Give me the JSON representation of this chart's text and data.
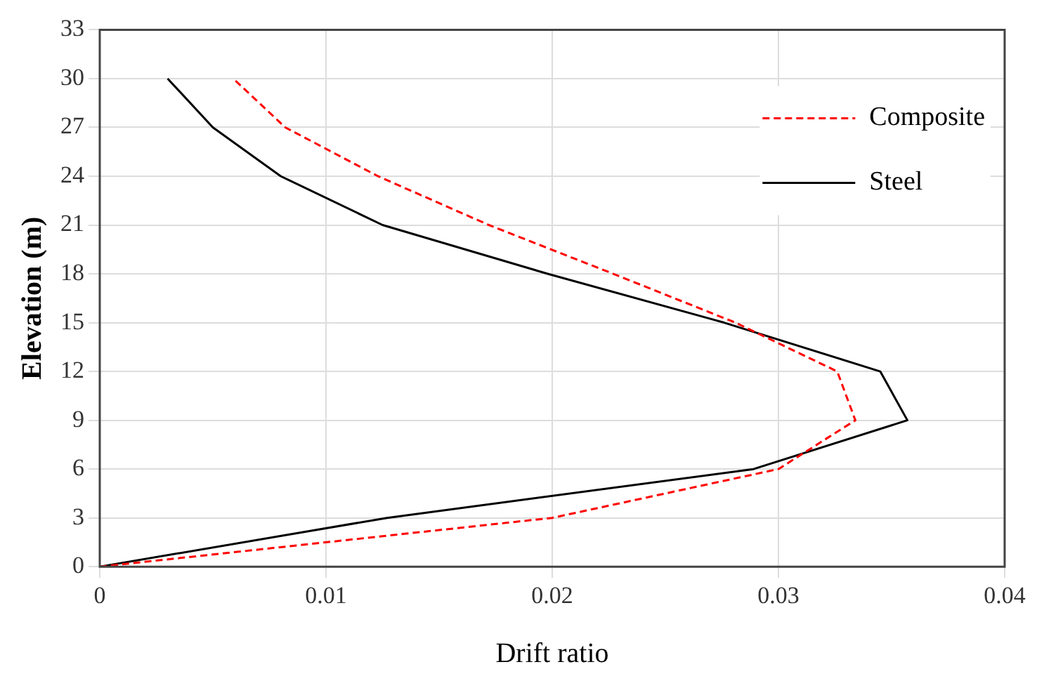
{
  "chart_data": {
    "type": "line",
    "xlabel": "Drift ratio",
    "ylabel": "Elevation (m)",
    "xlim": [
      0,
      0.04
    ],
    "xticks": [
      0,
      0.01,
      0.02,
      0.03,
      0.04
    ],
    "ylim": [
      0,
      33
    ],
    "yticks": [
      0,
      3,
      6,
      9,
      12,
      15,
      18,
      21,
      24,
      27,
      30,
      33
    ],
    "grid": true,
    "legend": "top right",
    "marker": "none",
    "series": [
      {
        "name": "Composite",
        "color": "#ff0000",
        "line_style": "dashed",
        "x": [
          0,
          0.02,
          0.03,
          0.0334,
          0.0326,
          0.0281,
          0.0227,
          0.0172,
          0.0123,
          0.0082,
          0.0059
        ],
        "values": [
          0,
          3,
          6,
          9,
          12,
          15,
          18,
          21,
          24,
          27,
          30
        ]
      },
      {
        "name": "Steel",
        "color": "#000000",
        "line_style": "solid",
        "x": [
          0,
          0.0127,
          0.0289,
          0.0357,
          0.0345,
          0.0276,
          0.0198,
          0.0125,
          0.008,
          0.005,
          0.003
        ],
        "values": [
          0,
          3,
          6,
          9,
          12,
          15,
          18,
          21,
          24,
          27,
          30
        ]
      }
    ]
  }
}
